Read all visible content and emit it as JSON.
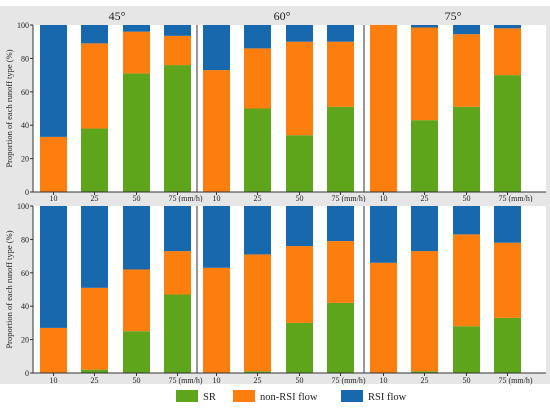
{
  "colors": {
    "SR": "#5ea51b",
    "non_rsi": "#fc7e0f",
    "rsi": "#1768ac",
    "panel_bg": "#e6e6e6",
    "axis": "#333333"
  },
  "chart_data": {
    "type": "bar",
    "stacked": true,
    "ylabel": "Proportion of each runoff type (%)",
    "ylim": [
      0,
      100
    ],
    "yticks": [
      0,
      20,
      40,
      60,
      80,
      100
    ],
    "grid": false,
    "legend": {
      "position": "bottom",
      "entries": [
        {
          "key": "SR",
          "label": "SR"
        },
        {
          "key": "non_rsi",
          "label": "non-RSI flow"
        },
        {
          "key": "rsi",
          "label": "RSI flow"
        }
      ]
    },
    "x_unit": "(mm/h)",
    "categories": [
      "10",
      "25",
      "50",
      "75"
    ],
    "rows": [
      {
        "groups": [
          {
            "title": "45°",
            "bars": [
              {
                "SR": 0,
                "non_rsi": 33,
                "rsi": 67
              },
              {
                "SR": 38,
                "non_rsi": 51,
                "rsi": 11
              },
              {
                "SR": 71,
                "non_rsi": 25,
                "rsi": 4
              },
              {
                "SR": 76,
                "non_rsi": 17.5,
                "rsi": 6.5
              }
            ]
          },
          {
            "title": "60°",
            "bars": [
              {
                "SR": 0,
                "non_rsi": 73,
                "rsi": 27
              },
              {
                "SR": 50,
                "non_rsi": 36,
                "rsi": 14
              },
              {
                "SR": 34,
                "non_rsi": 56,
                "rsi": 10
              },
              {
                "SR": 51,
                "non_rsi": 39,
                "rsi": 10
              }
            ]
          },
          {
            "title": "75°",
            "bars": [
              {
                "SR": 0,
                "non_rsi": 100,
                "rsi": 0
              },
              {
                "SR": 43,
                "non_rsi": 55.5,
                "rsi": 1.5
              },
              {
                "SR": 51,
                "non_rsi": 43.5,
                "rsi": 5.5
              },
              {
                "SR": 70,
                "non_rsi": 28,
                "rsi": 2
              }
            ]
          }
        ]
      },
      {
        "groups": [
          {
            "title": "",
            "bars": [
              {
                "SR": 0,
                "non_rsi": 27,
                "rsi": 73
              },
              {
                "SR": 2,
                "non_rsi": 49,
                "rsi": 49
              },
              {
                "SR": 25,
                "non_rsi": 37,
                "rsi": 38
              },
              {
                "SR": 47,
                "non_rsi": 26,
                "rsi": 27
              }
            ]
          },
          {
            "title": "",
            "bars": [
              {
                "SR": 0,
                "non_rsi": 63,
                "rsi": 37
              },
              {
                "SR": 1,
                "non_rsi": 70,
                "rsi": 29
              },
              {
                "SR": 30,
                "non_rsi": 46,
                "rsi": 24
              },
              {
                "SR": 42,
                "non_rsi": 37,
                "rsi": 21
              }
            ]
          },
          {
            "title": "",
            "bars": [
              {
                "SR": 0,
                "non_rsi": 66,
                "rsi": 34
              },
              {
                "SR": 1,
                "non_rsi": 72,
                "rsi": 27
              },
              {
                "SR": 28,
                "non_rsi": 55,
                "rsi": 17
              },
              {
                "SR": 33,
                "non_rsi": 45,
                "rsi": 22
              }
            ]
          }
        ]
      }
    ]
  }
}
